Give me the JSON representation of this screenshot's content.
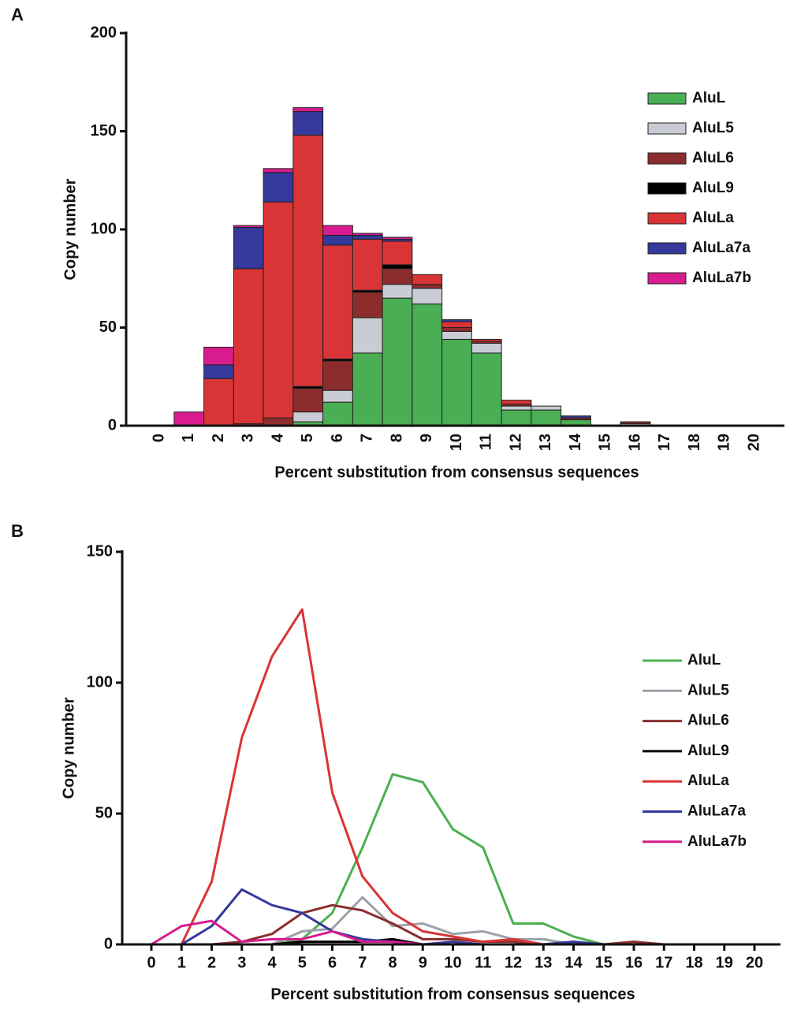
{
  "chart_data": [
    {
      "type": "stacked_bar",
      "panel_label": "A",
      "x_label": "Percent substitution from consensus sequences",
      "y_label": "Copy number",
      "categories": [
        "0",
        "1",
        "2",
        "3",
        "4",
        "5",
        "6",
        "7",
        "8",
        "9",
        "10",
        "11",
        "12",
        "13",
        "14",
        "15",
        "16",
        "17",
        "18",
        "19",
        "20"
      ],
      "ylim": [
        0,
        200
      ],
      "yticks": [
        0,
        50,
        100,
        150,
        200
      ],
      "series": [
        {
          "name": "AluL",
          "color": "#4aae55",
          "values": [
            0,
            0,
            0,
            0,
            0,
            2,
            12,
            37,
            65,
            62,
            44,
            37,
            8,
            8,
            3,
            0,
            0,
            0,
            0,
            0,
            0
          ]
        },
        {
          "name": "AluL5",
          "color": "#c9ccd4",
          "values": [
            0,
            0,
            0,
            0,
            0,
            5,
            6,
            18,
            7,
            8,
            4,
            5,
            2,
            2,
            0,
            0,
            1,
            0,
            0,
            0,
            0
          ]
        },
        {
          "name": "AluL6",
          "color": "#8c2d2d",
          "values": [
            0,
            0,
            0,
            1,
            4,
            12,
            15,
            13,
            8,
            2,
            2,
            1,
            1,
            0,
            1,
            0,
            1,
            0,
            0,
            0,
            0
          ]
        },
        {
          "name": "AluL9",
          "color": "#000000",
          "values": [
            0,
            0,
            0,
            0,
            0,
            1,
            1,
            1,
            2,
            0,
            0,
            0,
            0,
            0,
            0,
            0,
            0,
            0,
            0,
            0,
            0
          ]
        },
        {
          "name": "AluLa",
          "color": "#d93436",
          "values": [
            0,
            0,
            24,
            79,
            110,
            128,
            58,
            26,
            12,
            5,
            3,
            1,
            2,
            0,
            0,
            0,
            0,
            0,
            0,
            0,
            0
          ]
        },
        {
          "name": "AluLa7a",
          "color": "#34399b",
          "values": [
            0,
            0,
            7,
            21,
            15,
            12,
            5,
            2,
            1,
            0,
            1,
            0,
            0,
            0,
            1,
            0,
            0,
            0,
            0,
            0,
            0
          ]
        },
        {
          "name": "AluLa7b",
          "color": "#d81b8e",
          "values": [
            0,
            7,
            9,
            1,
            2,
            2,
            5,
            1,
            1,
            0,
            0,
            0,
            0,
            0,
            0,
            0,
            0,
            0,
            0,
            0,
            0
          ]
        }
      ]
    },
    {
      "type": "line",
      "panel_label": "B",
      "x_label": "Percent substitution from consensus sequences",
      "y_label": "Copy number",
      "categories": [
        "0",
        "1",
        "2",
        "3",
        "4",
        "5",
        "6",
        "7",
        "8",
        "9",
        "10",
        "11",
        "12",
        "13",
        "14",
        "15",
        "16",
        "17",
        "18",
        "19",
        "20"
      ],
      "ylim": [
        0,
        150
      ],
      "yticks": [
        0,
        50,
        100,
        150
      ],
      "series": [
        {
          "name": "AluL",
          "color": "#4cb050",
          "values": [
            0,
            0,
            0,
            0,
            0,
            2,
            12,
            37,
            65,
            62,
            44,
            37,
            8,
            8,
            3,
            0,
            0,
            0,
            0,
            0,
            0
          ]
        },
        {
          "name": "AluL5",
          "color": "#9ca1a9",
          "values": [
            0,
            0,
            0,
            0,
            0,
            5,
            6,
            18,
            7,
            8,
            4,
            5,
            2,
            2,
            0,
            0,
            1,
            0,
            0,
            0,
            0
          ]
        },
        {
          "name": "AluL6",
          "color": "#8a2e2e",
          "values": [
            0,
            0,
            0,
            1,
            4,
            12,
            15,
            13,
            8,
            2,
            2,
            1,
            1,
            0,
            1,
            0,
            1,
            0,
            0,
            0,
            0
          ]
        },
        {
          "name": "AluL9",
          "color": "#000000",
          "values": [
            0,
            0,
            0,
            0,
            0,
            1,
            1,
            1,
            2,
            0,
            0,
            0,
            0,
            0,
            0,
            0,
            0,
            0,
            0,
            0,
            0
          ]
        },
        {
          "name": "AluLa",
          "color": "#d93436",
          "values": [
            0,
            0,
            24,
            79,
            110,
            128,
            58,
            26,
            12,
            5,
            3,
            1,
            2,
            0,
            0,
            0,
            0,
            0,
            0,
            0,
            0
          ]
        },
        {
          "name": "AluLa7a",
          "color": "#34399b",
          "values": [
            0,
            0,
            7,
            21,
            15,
            12,
            5,
            2,
            1,
            0,
            1,
            0,
            0,
            0,
            1,
            0,
            0,
            0,
            0,
            0,
            0
          ]
        },
        {
          "name": "AluLa7b",
          "color": "#d81b8e",
          "values": [
            0,
            7,
            9,
            1,
            2,
            2,
            5,
            1,
            1,
            0,
            0,
            0,
            0,
            0,
            0,
            0,
            0,
            0,
            0,
            0,
            0
          ]
        }
      ]
    }
  ]
}
